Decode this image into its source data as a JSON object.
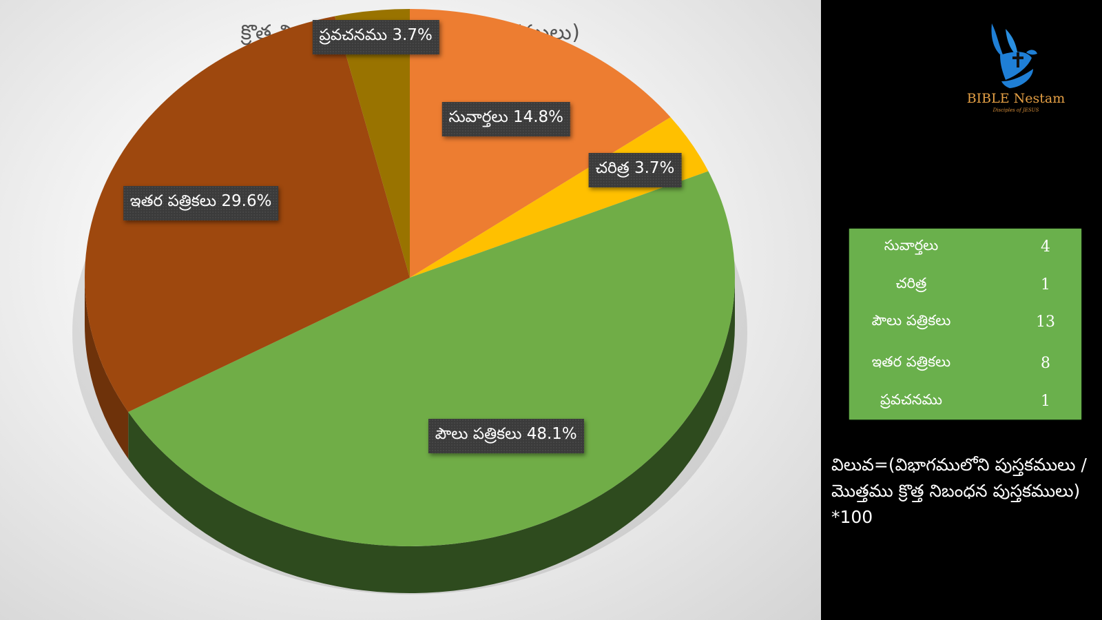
{
  "chart_data": {
    "type": "pie",
    "title": "క్రొత్త నిబంధన విభాగములు (పుస్తకములు)",
    "labels": [
      "సువార్తలు",
      "చరిత్ర",
      "పౌలు పత్రికలు",
      "ఇతర పత్రికలు",
      "ప్రవచనము"
    ],
    "values": [
      4,
      1,
      13,
      8,
      1
    ],
    "data_labels": [
      "సువార్తలు 14.8%",
      "చరిత్ర 3.7%",
      "పౌలు పత్రికలు 48.1%",
      "ఇతర పత్రికలు 29.6%",
      "ప్రవచనము 3.7%"
    ],
    "colors": [
      "#ed7d31",
      "#ffc000",
      "#70ad47",
      "#9e480e",
      "#997300"
    ],
    "side_colors": [
      "#b35a1f",
      "#c49300",
      "#2e4b1e",
      "#6e320a",
      "#6b5000"
    ]
  },
  "logo": {
    "name": "BIBLE Nestam",
    "tagline": "Disciples of JESUS"
  },
  "table": {
    "rows": [
      {
        "label": "సువార్తలు",
        "value": "4"
      },
      {
        "label": "చరిత్ర",
        "value": "1"
      },
      {
        "label": "పౌలు పత్రికలు",
        "value": "13"
      },
      {
        "label": "ఇతర పత్రికలు",
        "value": "8"
      },
      {
        "label": "ప్రవచనము",
        "value": "1"
      }
    ]
  },
  "formula": "విలువ=(విభాగములోని పుస్తకములు / మొత్తము క్రొత్త నిబంధన పుస్తకములు) *100"
}
